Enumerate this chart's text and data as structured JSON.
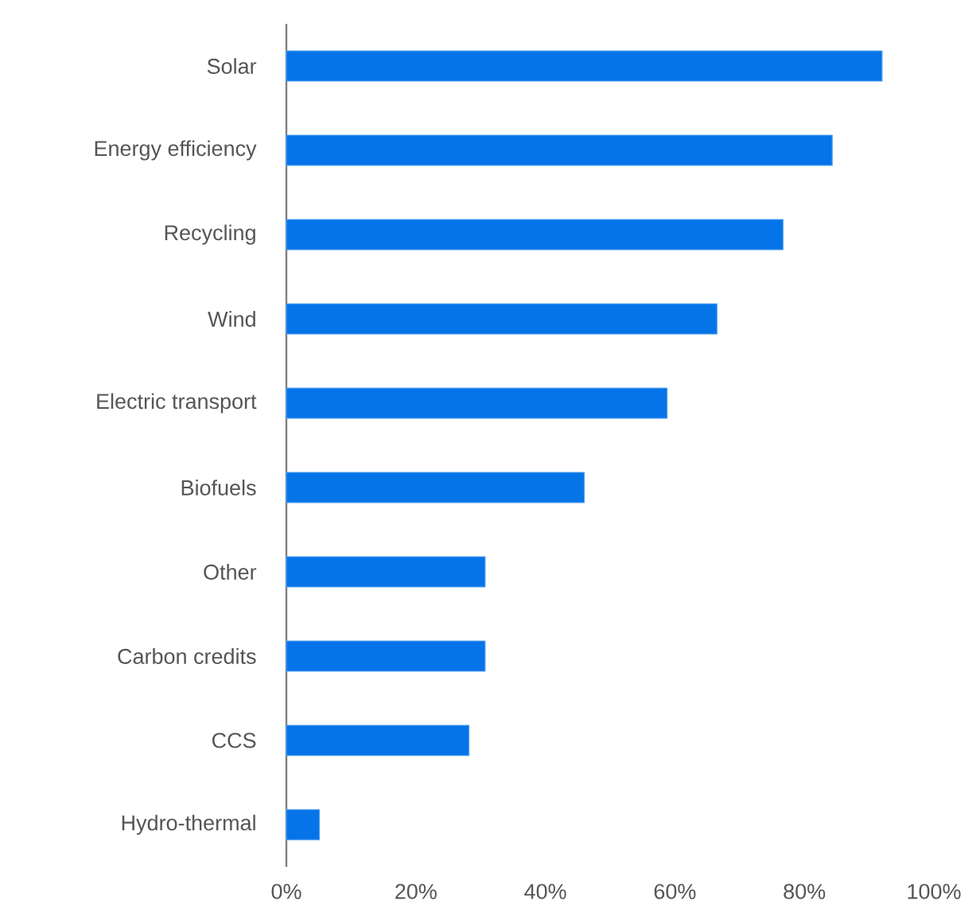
{
  "chart_data": {
    "type": "bar",
    "orientation": "horizontal",
    "categories": [
      "Solar",
      "Energy efficiency",
      "Recycling",
      "Wind",
      "Electric transport",
      "Biofuels",
      "Other",
      "Carbon credits",
      "CCS",
      "Hydro-thermal"
    ],
    "values": [
      92,
      84.3,
      76.7,
      66.5,
      58.8,
      46,
      30.7,
      30.7,
      28.2,
      5.1
    ],
    "color": "#0574e8",
    "xlim": [
      0,
      100
    ],
    "xticks": [
      {
        "value": 0,
        "label": "0%"
      },
      {
        "value": 20,
        "label": "20%"
      },
      {
        "value": 40,
        "label": "40%"
      },
      {
        "value": 60,
        "label": "60%"
      },
      {
        "value": 80,
        "label": "80%"
      },
      {
        "value": 100,
        "label": "100%"
      }
    ]
  }
}
